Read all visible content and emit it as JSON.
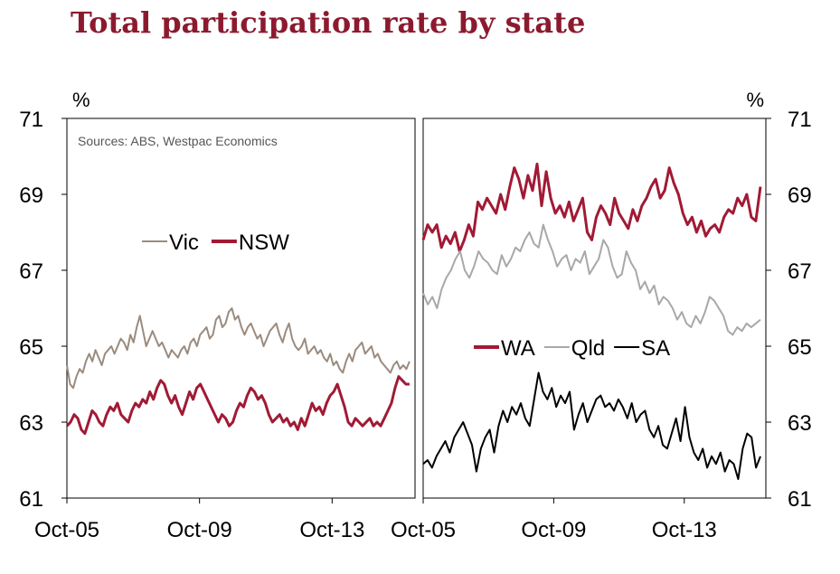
{
  "chart_title": "Total participation rate by state",
  "chart_data": [
    {
      "type": "line",
      "panel": "left",
      "title": "",
      "ylabel": "%",
      "ylim": [
        61,
        71
      ],
      "yticks": [
        "61",
        "63",
        "65",
        "67",
        "69",
        "71"
      ],
      "xticks": [
        "Oct-05",
        "Oct-09",
        "Oct-13"
      ],
      "xlim": [
        "2005-10",
        "2016-04"
      ],
      "source_note": "Sources: ABS, Westpac Economics",
      "legend_position": "top-center",
      "series": [
        {
          "name": "Vic",
          "color": "#9b8b7e",
          "values": [
            64.5,
            64.0,
            63.9,
            64.2,
            64.4,
            64.3,
            64.6,
            64.8,
            64.6,
            64.9,
            64.7,
            64.5,
            64.8,
            64.9,
            65.0,
            64.8,
            65.0,
            65.2,
            65.1,
            64.9,
            65.3,
            65.1,
            65.5,
            65.8,
            65.4,
            65.0,
            65.2,
            65.4,
            65.2,
            65.0,
            65.1,
            64.9,
            64.7,
            64.9,
            64.8,
            64.7,
            64.9,
            65.0,
            64.8,
            65.1,
            65.2,
            65.0,
            65.3,
            65.4,
            65.5,
            65.2,
            65.3,
            65.7,
            65.8,
            65.5,
            65.6,
            65.9,
            66.0,
            65.7,
            65.8,
            65.5,
            65.3,
            65.5,
            65.6,
            65.4,
            65.2,
            65.3,
            65.0,
            65.2,
            65.4,
            65.5,
            65.6,
            65.3,
            65.1,
            65.4,
            65.6,
            65.2,
            65.0,
            64.9,
            65.0,
            65.2,
            64.8,
            64.9,
            65.0,
            64.8,
            64.9,
            64.7,
            64.6,
            64.8,
            64.5,
            64.6,
            64.4,
            64.3,
            64.6,
            64.8,
            64.6,
            64.9,
            65.0,
            65.1,
            64.8,
            64.9,
            65.0,
            64.7,
            64.8,
            64.6,
            64.5,
            64.4,
            64.3,
            64.5,
            64.6,
            64.4,
            64.5,
            64.4,
            64.6
          ]
        },
        {
          "name": "NSW",
          "color": "#a11a35",
          "values": [
            62.9,
            63.0,
            63.2,
            63.1,
            62.8,
            62.7,
            63.0,
            63.3,
            63.2,
            63.0,
            62.9,
            63.2,
            63.4,
            63.3,
            63.5,
            63.2,
            63.1,
            63.0,
            63.3,
            63.5,
            63.4,
            63.6,
            63.5,
            63.8,
            63.6,
            63.9,
            64.1,
            64.0,
            63.7,
            63.5,
            63.7,
            63.4,
            63.2,
            63.5,
            63.8,
            63.6,
            63.9,
            64.0,
            63.8,
            63.6,
            63.4,
            63.2,
            63.0,
            63.2,
            63.1,
            62.9,
            63.0,
            63.3,
            63.5,
            63.4,
            63.7,
            63.9,
            63.8,
            63.6,
            63.7,
            63.5,
            63.2,
            63.0,
            63.1,
            63.2,
            63.0,
            63.1,
            62.9,
            63.0,
            62.8,
            63.1,
            62.9,
            63.2,
            63.5,
            63.3,
            63.4,
            63.2,
            63.5,
            63.7,
            63.8,
            64.0,
            63.7,
            63.4,
            63.0,
            62.9,
            63.1,
            63.0,
            62.9,
            63.0,
            63.1,
            62.9,
            63.0,
            62.9,
            63.1,
            63.3,
            63.5,
            63.9,
            64.2,
            64.1,
            64.0,
            64.0
          ]
        }
      ]
    },
    {
      "type": "line",
      "panel": "right",
      "title": "",
      "ylabel": "%",
      "ylim": [
        61,
        71
      ],
      "yticks": [
        "61",
        "63",
        "65",
        "67",
        "69",
        "71"
      ],
      "xticks": [
        "Oct-05",
        "Oct-09",
        "Oct-13"
      ],
      "xlim": [
        "2005-10",
        "2016-04"
      ],
      "legend_position": "center",
      "series": [
        {
          "name": "WA",
          "color": "#a11a35",
          "values": [
            67.8,
            68.2,
            68.0,
            68.2,
            67.6,
            67.9,
            67.7,
            68.0,
            67.5,
            67.8,
            68.2,
            67.9,
            68.8,
            68.6,
            68.9,
            68.7,
            68.5,
            69.0,
            68.6,
            69.2,
            69.7,
            69.4,
            68.9,
            69.5,
            69.1,
            69.8,
            68.7,
            69.6,
            68.9,
            68.5,
            68.7,
            68.4,
            68.8,
            68.3,
            68.6,
            68.9,
            68.0,
            67.8,
            68.4,
            68.7,
            68.5,
            68.2,
            68.9,
            68.5,
            68.3,
            68.1,
            68.6,
            68.3,
            68.7,
            68.9,
            69.2,
            69.4,
            68.9,
            69.1,
            69.7,
            69.3,
            69.0,
            68.5,
            68.2,
            68.4,
            68.0,
            68.3,
            67.9,
            68.1,
            68.2,
            68.0,
            68.4,
            68.6,
            68.5,
            68.9,
            68.7,
            69.0,
            68.4,
            68.3,
            69.2
          ]
        },
        {
          "name": "Qld",
          "color": "#a8a8a8",
          "values": [
            66.4,
            66.1,
            66.3,
            66.0,
            66.5,
            66.8,
            67.0,
            67.3,
            67.5,
            67.0,
            66.8,
            67.1,
            67.5,
            67.3,
            67.2,
            67.0,
            66.9,
            67.4,
            67.1,
            67.3,
            67.6,
            67.5,
            67.8,
            68.0,
            67.7,
            67.6,
            68.2,
            67.8,
            67.5,
            67.1,
            67.3,
            67.4,
            67.0,
            67.3,
            67.2,
            67.5,
            66.9,
            67.1,
            67.3,
            67.8,
            67.6,
            67.1,
            66.8,
            66.9,
            67.5,
            67.2,
            67.0,
            66.5,
            66.7,
            66.4,
            66.6,
            66.1,
            66.3,
            66.2,
            66.0,
            65.7,
            65.9,
            65.6,
            65.5,
            65.8,
            65.6,
            65.9,
            66.3,
            66.2,
            66.0,
            65.8,
            65.4,
            65.3,
            65.5,
            65.4,
            65.6,
            65.5,
            65.6,
            65.7
          ]
        },
        {
          "name": "SA",
          "color": "#000000",
          "values": [
            61.9,
            62.0,
            61.8,
            62.1,
            62.3,
            62.5,
            62.2,
            62.6,
            62.8,
            63.0,
            62.7,
            62.4,
            61.7,
            62.3,
            62.6,
            62.8,
            62.2,
            62.9,
            63.3,
            63.0,
            63.4,
            63.2,
            63.5,
            63.1,
            62.9,
            63.6,
            64.3,
            63.8,
            63.6,
            63.9,
            63.4,
            63.7,
            63.5,
            63.8,
            62.8,
            63.2,
            63.5,
            63.0,
            63.3,
            63.6,
            63.7,
            63.4,
            63.5,
            63.3,
            63.6,
            63.4,
            63.1,
            63.5,
            63.0,
            63.2,
            63.3,
            62.8,
            62.6,
            62.9,
            62.4,
            62.3,
            62.7,
            63.1,
            62.5,
            63.4,
            62.6,
            62.2,
            62.0,
            62.3,
            61.8,
            62.1,
            61.9,
            62.2,
            61.7,
            62.0,
            61.9,
            61.5,
            62.3,
            62.7,
            62.6,
            61.8,
            62.1
          ]
        }
      ]
    }
  ]
}
